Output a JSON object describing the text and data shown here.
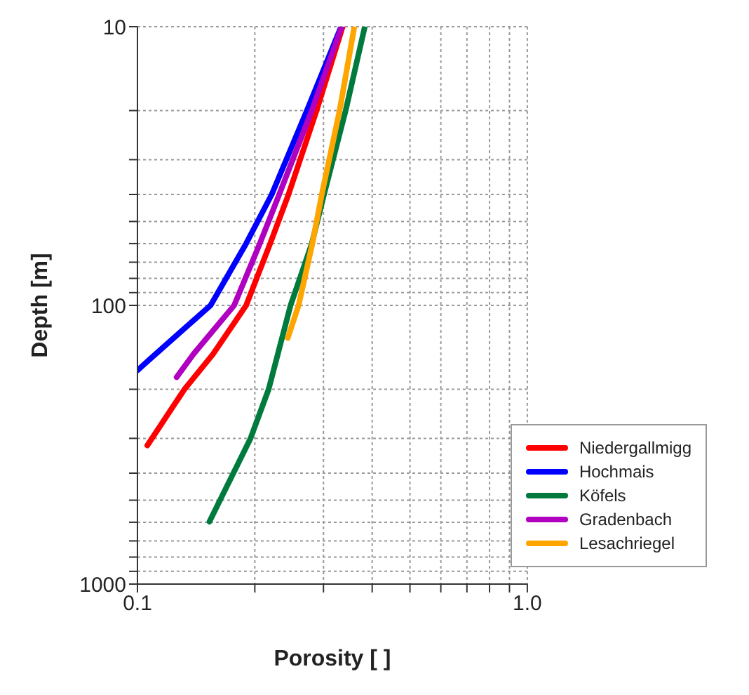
{
  "chart_data": {
    "type": "line",
    "xlabel": "Porosity [ ]",
    "ylabel": "Depth [m]",
    "log": "xy",
    "grid": true,
    "legend": "bottom right",
    "line_style": "solid",
    "marker": "none",
    "xlim": [
      0.1,
      1
    ],
    "ylim": [
      1000,
      10
    ],
    "xticks": [
      0.1,
      {
        "value": 0.2,
        "label": null
      },
      {
        "value": 0.3,
        "label": null
      },
      {
        "value": 0.4,
        "label": null
      },
      {
        "value": 0.5,
        "label": null
      },
      {
        "value": 0.6,
        "label": null
      },
      {
        "value": 0.7,
        "label": null
      },
      {
        "value": 0.8,
        "label": null
      },
      {
        "value": 0.9,
        "label": null
      },
      {
        "value": 1,
        "label": "1.0"
      }
    ],
    "yticks": [
      10,
      {
        "value": 20,
        "label": null
      },
      {
        "value": 30,
        "label": null
      },
      {
        "value": 40,
        "label": null
      },
      {
        "value": 50,
        "label": null
      },
      {
        "value": 60,
        "label": null
      },
      {
        "value": 70,
        "label": null
      },
      {
        "value": 80,
        "label": null
      },
      {
        "value": 90,
        "label": null
      },
      100,
      {
        "value": 200,
        "label": null
      },
      {
        "value": 300,
        "label": null
      },
      {
        "value": 400,
        "label": null
      },
      {
        "value": 500,
        "label": null
      },
      {
        "value": 600,
        "label": null
      },
      {
        "value": 700,
        "label": null
      },
      {
        "value": 800,
        "label": null
      },
      {
        "value": 900,
        "label": null
      },
      1000
    ],
    "series": [
      {
        "name": "Niedergallmigg",
        "color": "#ff0000",
        "x": [
          0.336,
          0.288,
          0.244,
          0.219,
          0.19,
          0.156,
          0.132,
          0.106
        ],
        "values": [
          10,
          20,
          40,
          60,
          100,
          150,
          200,
          318
        ]
      },
      {
        "name": "Hochmais",
        "color": "#0000ff",
        "x": [
          0.333,
          0.272,
          0.221,
          0.19,
          0.154,
          0.111,
          0.1
        ],
        "values": [
          10,
          20,
          40,
          60,
          100,
          150,
          171
        ]
      },
      {
        "name": "Köfels",
        "color": "#007a3d",
        "x": [
          0.383,
          0.342,
          0.301,
          0.28,
          0.247,
          0.217,
          0.195,
          0.153
        ],
        "values": [
          10,
          20,
          40,
          60,
          100,
          200,
          300,
          597
        ]
      },
      {
        "name": "Gradenbach",
        "color": "#b000c0",
        "x": [
          0.334,
          0.28,
          0.231,
          0.206,
          0.177,
          0.139,
          0.126
        ],
        "values": [
          10,
          20,
          40,
          60,
          100,
          150,
          181
        ]
      },
      {
        "name": "Lesachriegel",
        "color": "#ffa500",
        "x": [
          0.36,
          0.33,
          0.297,
          0.281,
          0.259,
          0.243
        ],
        "values": [
          10,
          20,
          40,
          60,
          100,
          131
        ]
      }
    ]
  }
}
